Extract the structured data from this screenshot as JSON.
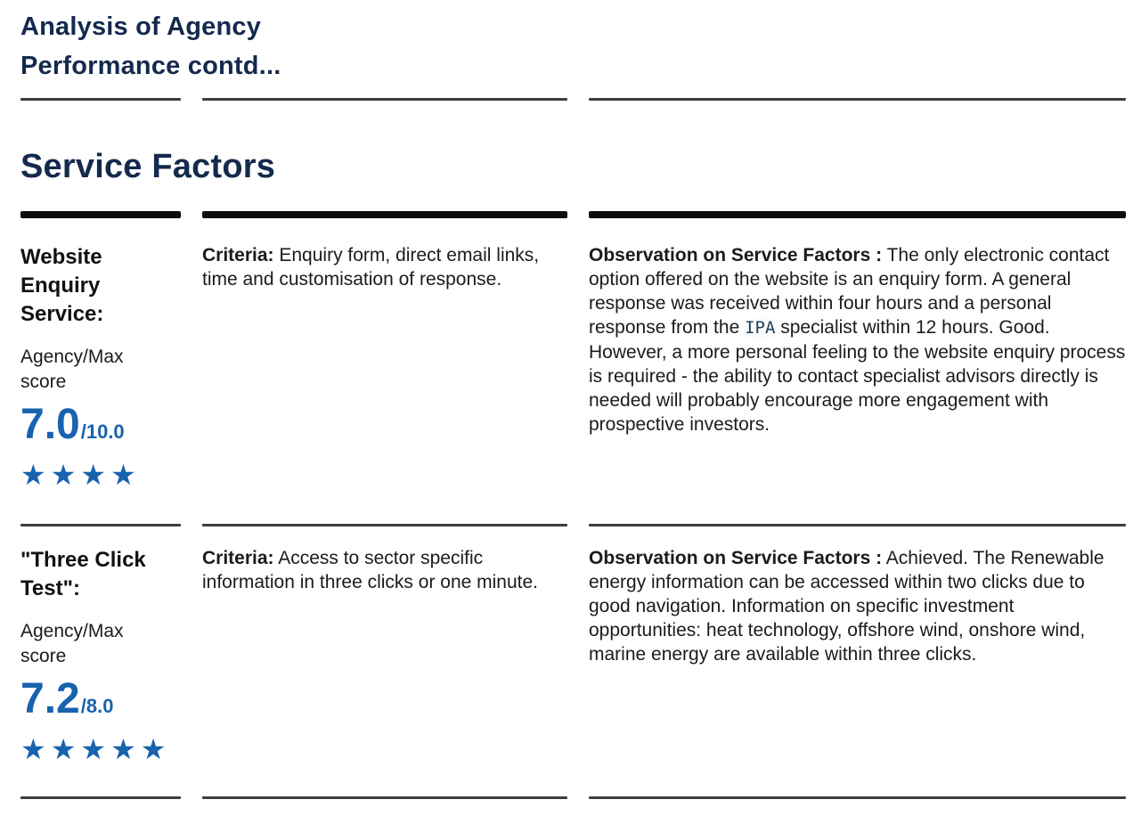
{
  "page": {
    "title_line1": "Analysis of Agency",
    "title_line2": "Performance contd...",
    "section_heading": "Service Factors"
  },
  "colors": {
    "heading_navy": "#142a4d",
    "score_blue": "#1862ae",
    "body_text": "#1b1b1b",
    "rule_thin": "#3d3d3d",
    "rule_thick": "#0d0d0d"
  },
  "rows": [
    {
      "factor": "Website Enquiry Service:",
      "score_label_line1": "Agency/Max",
      "score_label_line2": "score",
      "score_value": "7.0",
      "score_max": "/10.0",
      "stars_count": 4,
      "stars_glyphs": "★★★★",
      "criteria_label": "Criteria:",
      "criteria_text": " Enquiry form, direct email links, time and customisation of response.",
      "observation_label": "Observation on Service Factors :",
      "observation_before": " The only electronic contact option offered on the website is an enquiry form. A general response was received within four hours and a personal response from the ",
      "observation_redacted": "IPA",
      "observation_after": " specialist within 12 hours. Good. However, a more personal feeling to the website enquiry process is required - the ability to contact specialist advisors directly is needed will probably encourage more engagement with prospective investors."
    },
    {
      "factor": "\"Three Click Test\":",
      "score_label_line1": "Agency/Max",
      "score_label_line2": "score",
      "score_value": "7.2",
      "score_max": "/8.0",
      "stars_count": 5,
      "stars_glyphs": "★★★★★",
      "criteria_label": "Criteria:",
      "criteria_text": " Access to sector specific information in three clicks or one minute.",
      "observation_label": "Observation on Service Factors :",
      "observation_before": " Achieved. The Renewable energy information can be accessed within two clicks due to good navigation. Information on specific investment opportunities: heat technology, offshore wind, onshore wind, marine energy are available within three clicks.",
      "observation_redacted": "",
      "observation_after": ""
    }
  ]
}
